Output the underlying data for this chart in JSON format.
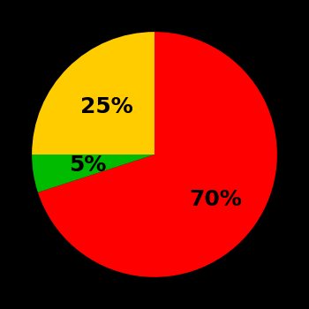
{
  "slices": [
    70,
    5,
    25
  ],
  "colors": [
    "#ff0000",
    "#00bb00",
    "#ffcc00"
  ],
  "labels": [
    "70%",
    "5%",
    "25%"
  ],
  "background_color": "#000000",
  "label_fontsize": 18,
  "label_fontweight": "bold",
  "startangle": 90,
  "counterclock": false,
  "label_radii": [
    0.62,
    0.55,
    0.55
  ],
  "figsize": [
    3.5,
    3.5
  ],
  "dpi": 100
}
